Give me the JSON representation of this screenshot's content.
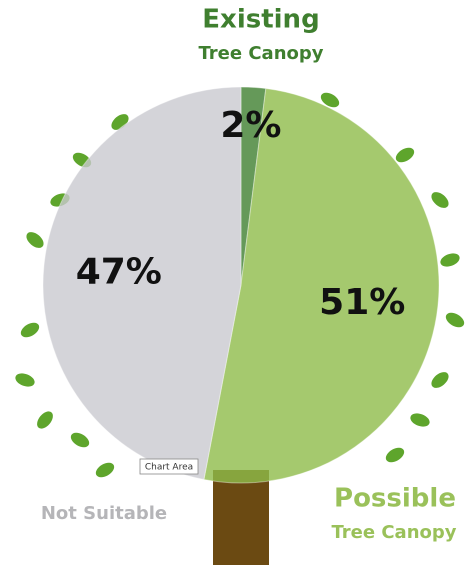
{
  "chart_data": {
    "type": "pie",
    "categories": [
      [
        "Existing",
        "Tree Canopy"
      ],
      [
        "Possible",
        "Tree Canopy"
      ],
      [
        "Not Suitable"
      ]
    ],
    "values": [
      2,
      51,
      47
    ],
    "value_labels": [
      "2%",
      "51%",
      "47%"
    ],
    "colors": [
      "#3f7f2f",
      "#8fbc4a",
      "#c9c9cf"
    ],
    "tooltip": "Chart Area"
  }
}
